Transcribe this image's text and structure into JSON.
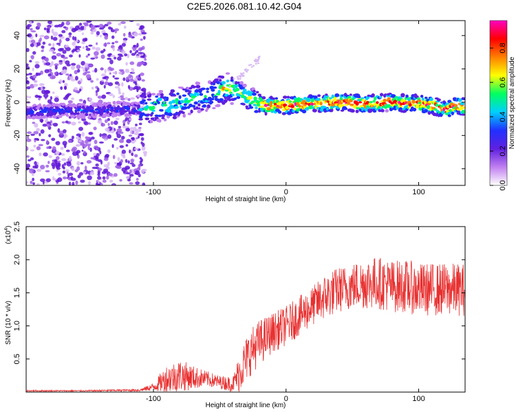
{
  "title": "C2E5.2026.081.10.42.G04",
  "chart_data": [
    {
      "type": "heatmap",
      "name": "spectrogram",
      "xlabel": "Height of straight line (km)",
      "ylabel": "Frequency (Hz)",
      "xlim": [
        -196,
        135
      ],
      "ylim": [
        -50,
        49
      ],
      "xticks": [
        -100,
        0,
        100
      ],
      "xtick_labels": [
        "-100",
        "0",
        "100"
      ],
      "yticks": [
        -40,
        -20,
        0,
        20,
        40
      ],
      "ytick_labels": [
        "-40",
        "-20",
        "0",
        "20",
        "40"
      ],
      "ridge_x": [
        -196,
        -175,
        -150,
        -125,
        -110,
        -100,
        -85,
        -70,
        -55,
        -45,
        -38,
        -30,
        -22,
        -15,
        -5,
        0,
        20,
        40,
        60,
        80,
        100,
        110,
        115,
        120,
        125,
        130,
        135
      ],
      "ridge_y": [
        -6,
        -5,
        -5,
        -4,
        -4,
        -3,
        -1,
        2,
        5,
        9,
        7,
        3,
        0,
        -2,
        -2,
        -2,
        -1,
        0,
        -1,
        0,
        -1,
        -2,
        -3,
        -5,
        -3,
        -2,
        -3
      ],
      "noise_region_x": [
        -196,
        -106
      ],
      "colorbar": {
        "label": "Normalized spectral amplitude",
        "range": [
          0,
          0.96
        ],
        "ticks": [
          0.0,
          0.2,
          0.4,
          0.6,
          0.8
        ],
        "tick_labels": [
          "0.0",
          "0.2",
          "0.4",
          "0.6",
          "0.8"
        ],
        "colors": [
          "#ffffff",
          "#c080f0",
          "#6020e0",
          "#2030ff",
          "#00d0ff",
          "#00ff60",
          "#ffff00",
          "#ff8000",
          "#ff0000",
          "#ff00c0"
        ]
      }
    },
    {
      "type": "line",
      "name": "snr",
      "xlabel": "Height of straight line (km)",
      "ylabel": "SNR (10 * v/v)",
      "y_multiplier_label": "(x10",
      "y_multiplier_exp": "4",
      "y_multiplier_close": ")",
      "xlim": [
        -196,
        135
      ],
      "ylim": [
        0,
        2.5
      ],
      "xticks": [
        -100,
        0,
        100
      ],
      "xtick_labels": [
        "-100",
        "0",
        "100"
      ],
      "yticks": [
        0.5,
        1.0,
        1.5,
        2.0,
        2.5
      ],
      "ytick_labels": [
        "0.5",
        "1.0",
        "1.5",
        "2.0",
        "2.5"
      ],
      "series_color": "#e83030",
      "trend_x": [
        -196,
        -150,
        -110,
        -100,
        -90,
        -80,
        -70,
        -60,
        -50,
        -40,
        -35,
        -30,
        -25,
        -20,
        -10,
        0,
        10,
        20,
        30,
        40,
        50,
        60,
        70,
        80,
        90,
        100,
        110,
        120,
        135
      ],
      "trend_y": [
        0.02,
        0.02,
        0.03,
        0.08,
        0.2,
        0.25,
        0.22,
        0.2,
        0.15,
        0.12,
        0.3,
        0.5,
        0.65,
        0.75,
        0.9,
        1.0,
        1.15,
        1.3,
        1.45,
        1.55,
        1.6,
        1.65,
        1.65,
        1.6,
        1.6,
        1.55,
        1.55,
        1.55,
        1.55
      ],
      "noise_amp": [
        0.01,
        0.01,
        0.02,
        0.06,
        0.22,
        0.25,
        0.18,
        0.12,
        0.1,
        0.12,
        0.3,
        0.35,
        0.35,
        0.35,
        0.3,
        0.3,
        0.3,
        0.3,
        0.35,
        0.35,
        0.35,
        0.4,
        0.4,
        0.4,
        0.4,
        0.4,
        0.4,
        0.4,
        0.4
      ]
    }
  ]
}
